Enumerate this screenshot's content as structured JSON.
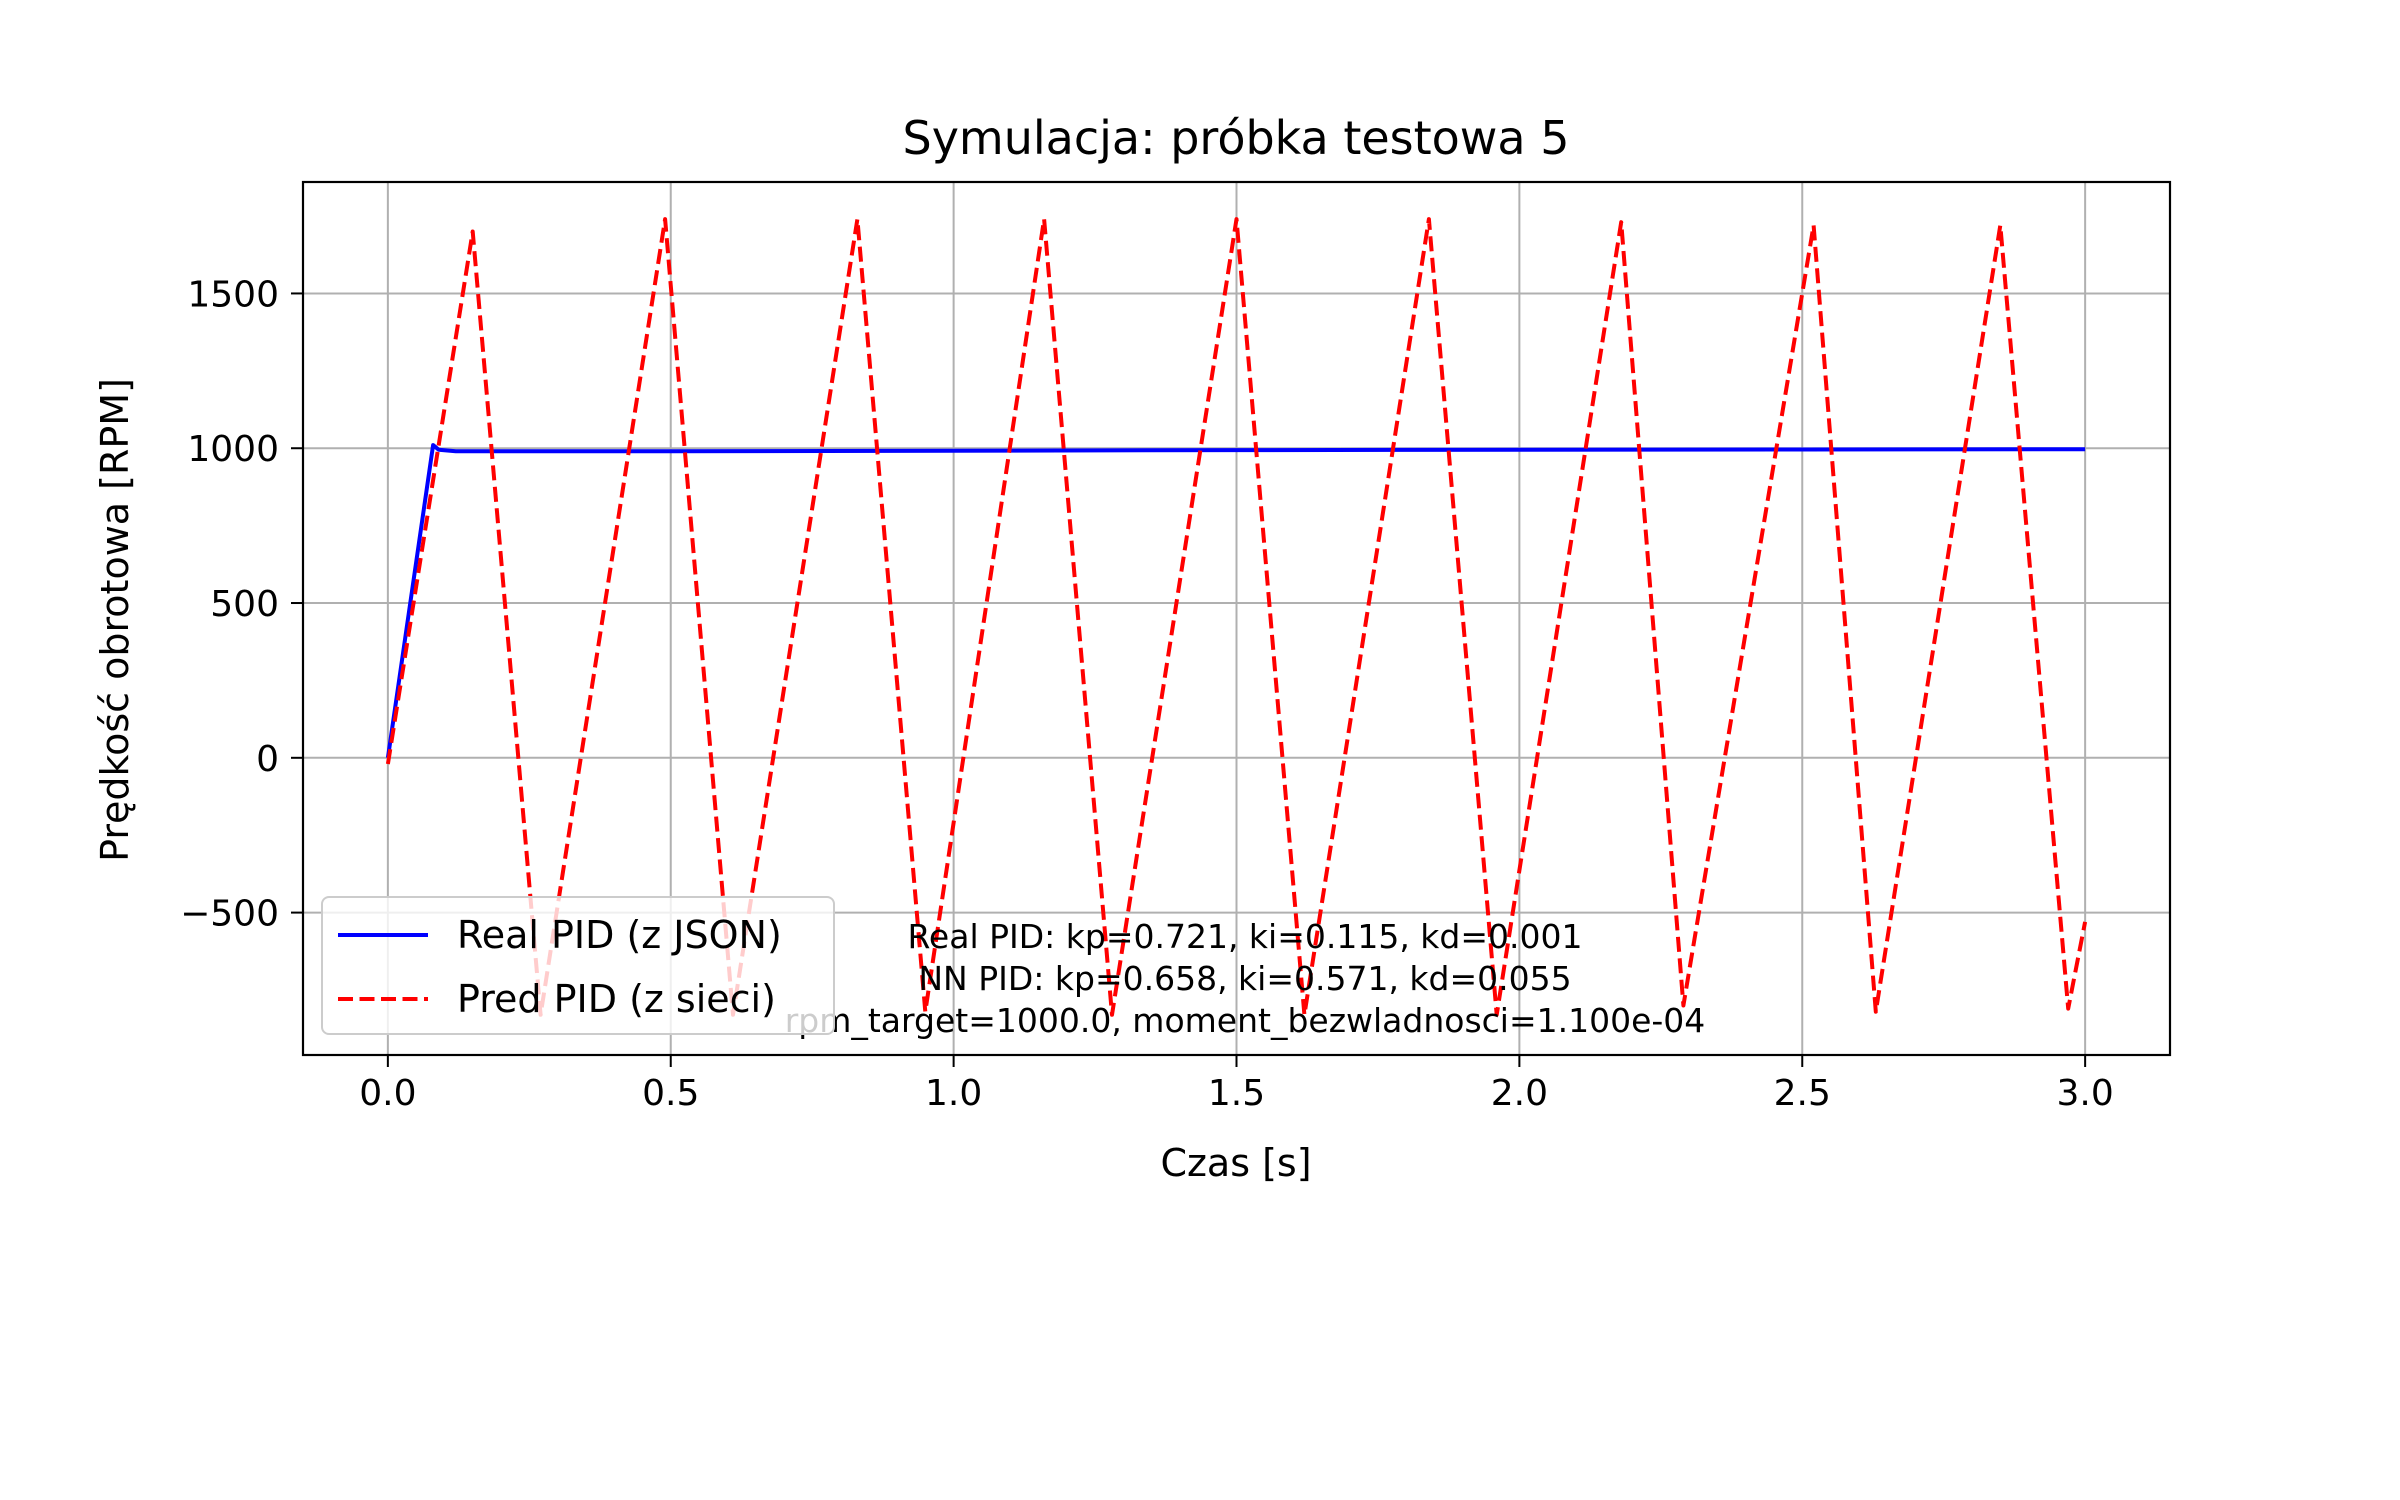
{
  "chart_data": {
    "type": "line",
    "title": "Symulacja: próbka testowa 5",
    "xlabel": "Czas [s]",
    "ylabel": "Prędkość obrotowa [RPM]",
    "xlim": [
      -0.15,
      3.15
    ],
    "ylim": [
      -960,
      1860
    ],
    "xticks": [
      0.0,
      0.5,
      1.0,
      1.5,
      2.0,
      2.5,
      3.0
    ],
    "xtick_labels": [
      "0.0",
      "0.5",
      "1.0",
      "1.5",
      "2.0",
      "2.5",
      "3.0"
    ],
    "yticks": [
      -500,
      0,
      500,
      1000,
      1500
    ],
    "ytick_labels": [
      "−500",
      "0",
      "500",
      "1000",
      "1500"
    ],
    "grid": true,
    "legend_position": "lower-left",
    "series": [
      {
        "name": "Real PID (z JSON)",
        "color": "#0000ff",
        "style": "solid",
        "x": [
          0.0,
          0.08,
          0.09,
          0.12,
          0.2,
          0.5,
          1.0,
          1.5,
          2.0,
          2.5,
          3.0
        ],
        "y": [
          0,
          1010,
          995,
          990,
          990,
          990,
          992,
          994,
          995,
          996,
          997
        ]
      },
      {
        "name": "Pred PID (z sieci)",
        "color": "#ff0000",
        "style": "dashed",
        "x": [
          0.0,
          0.15,
          0.27,
          0.49,
          0.61,
          0.83,
          0.95,
          1.16,
          1.28,
          1.5,
          1.62,
          1.84,
          1.96,
          2.18,
          2.29,
          2.52,
          2.63,
          2.85,
          2.97,
          3.0
        ],
        "y": [
          -20,
          1700,
          -830,
          1740,
          -830,
          1740,
          -820,
          1740,
          -830,
          1740,
          -830,
          1740,
          -830,
          1730,
          -800,
          1720,
          -820,
          1720,
          -810,
          -530
        ]
      }
    ],
    "annotations": [
      "Real PID: kp=0.721, ki=0.115, kd=0.001",
      "NN   PID: kp=0.658, ki=0.571, kd=0.055",
      "rpm_target=1000.0, moment_bezwladnosci=1.100e-04"
    ]
  }
}
